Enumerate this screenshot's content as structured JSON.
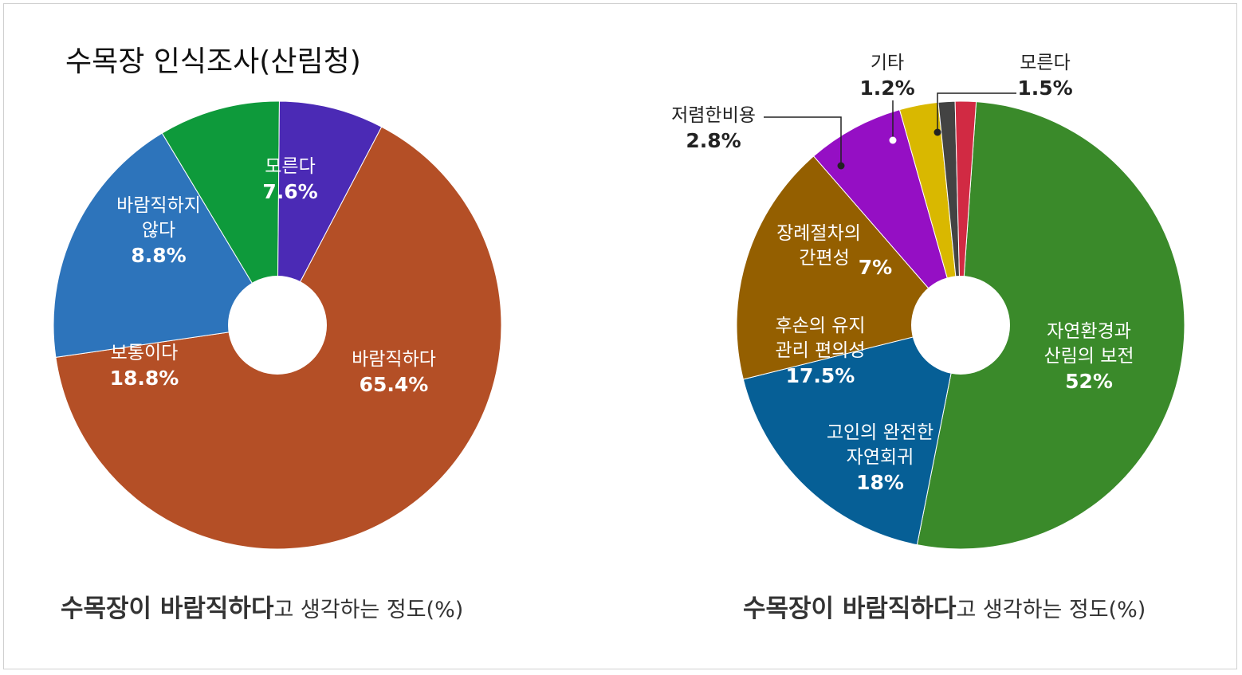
{
  "page_title": "수목장 인식조사(산림청)",
  "chart_data": [
    {
      "type": "pie",
      "caption_bold": "수목장이  바람직하다",
      "caption_rest": "고 생각하는 정도(%)",
      "slices": [
        {
          "label": [
            "바람직하다"
          ],
          "value_text": "65.4%",
          "value": 65.4,
          "color": "#b44f26"
        },
        {
          "label": [
            "보통이다"
          ],
          "value_text": "18.8%",
          "value": 18.8,
          "color": "#2d74bb"
        },
        {
          "label": [
            "바람직하지",
            "않다"
          ],
          "value_text": "8.8%",
          "value": 8.8,
          "color": "#0e9a3b"
        },
        {
          "label": [
            "모른다"
          ],
          "value_text": "7.6%",
          "value": 7.6,
          "color": "#4b2ab5"
        }
      ]
    },
    {
      "type": "pie",
      "caption_bold": "수목장이  바람직하다",
      "caption_rest": "고 생각하는 정도(%)",
      "slices": [
        {
          "label": [
            "자연환경과",
            "산림의 보전"
          ],
          "value_text": "52%",
          "value": 52,
          "color": "#3a8a2a"
        },
        {
          "label": [
            "고인의 완전한",
            "자연회귀"
          ],
          "value_text": "18%",
          "value": 18,
          "color": "#065f96"
        },
        {
          "label": [
            "후손의 유지",
            "관리 편의성"
          ],
          "value_text": "17.5%",
          "value": 17.5,
          "color": "#945f00"
        },
        {
          "label": [
            "장례절차의",
            "간편성"
          ],
          "value_text": "7%",
          "value": 7,
          "color": "#950fc4"
        },
        {
          "label": [
            "저렴한비용"
          ],
          "value_text": "2.8%",
          "value": 2.8,
          "color": "#d9b800"
        },
        {
          "label": [
            "기타"
          ],
          "value_text": "1.2%",
          "value": 1.2,
          "color": "#434343"
        },
        {
          "label": [
            "모른다"
          ],
          "value_text": "1.5%",
          "value": 1.5,
          "color": "#d12a43"
        }
      ]
    }
  ]
}
